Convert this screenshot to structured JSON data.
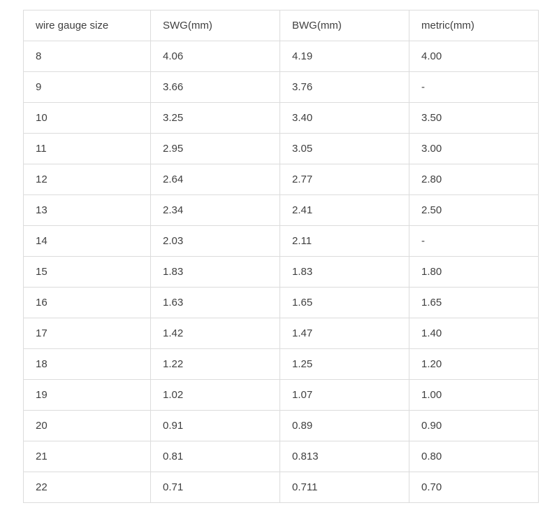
{
  "colors": {
    "background": "#ffffff",
    "border": "#dcdcdc",
    "text": "#404040"
  },
  "table": {
    "columns": [
      "wire gauge size",
      "SWG(mm)",
      "BWG(mm)",
      "metric(mm)"
    ],
    "rows": [
      [
        "8",
        "4.06",
        "4.19",
        "4.00"
      ],
      [
        "9",
        "3.66",
        "3.76",
        "-"
      ],
      [
        "10",
        "3.25",
        "3.40",
        "3.50"
      ],
      [
        "11",
        "2.95",
        "3.05",
        "3.00"
      ],
      [
        "12",
        "2.64",
        "2.77",
        "2.80"
      ],
      [
        "13",
        "2.34",
        "2.41",
        "2.50"
      ],
      [
        "14",
        "2.03",
        "2.11",
        "-"
      ],
      [
        "15",
        "1.83",
        "1.83",
        "1.80"
      ],
      [
        "16",
        "1.63",
        "1.65",
        "1.65"
      ],
      [
        "17",
        "1.42",
        "1.47",
        "1.40"
      ],
      [
        "18",
        "1.22",
        "1.25",
        "1.20"
      ],
      [
        "19",
        "1.02",
        "1.07",
        "1.00"
      ],
      [
        "20",
        "0.91",
        "0.89",
        "0.90"
      ],
      [
        "21",
        "0.81",
        "0.813",
        "0.80"
      ],
      [
        "22",
        "0.71",
        "0.711",
        "0.70"
      ]
    ]
  },
  "chart_data": {
    "type": "table",
    "title": "",
    "columns": [
      "wire gauge size",
      "SWG(mm)",
      "BWG(mm)",
      "metric(mm)"
    ],
    "rows": [
      [
        "8",
        "4.06",
        "4.19",
        "4.00"
      ],
      [
        "9",
        "3.66",
        "3.76",
        "-"
      ],
      [
        "10",
        "3.25",
        "3.40",
        "3.50"
      ],
      [
        "11",
        "2.95",
        "3.05",
        "3.00"
      ],
      [
        "12",
        "2.64",
        "2.77",
        "2.80"
      ],
      [
        "13",
        "2.34",
        "2.41",
        "2.50"
      ],
      [
        "14",
        "2.03",
        "2.11",
        "-"
      ],
      [
        "15",
        "1.83",
        "1.83",
        "1.80"
      ],
      [
        "16",
        "1.63",
        "1.65",
        "1.65"
      ],
      [
        "17",
        "1.42",
        "1.47",
        "1.40"
      ],
      [
        "18",
        "1.22",
        "1.25",
        "1.20"
      ],
      [
        "19",
        "1.02",
        "1.07",
        "1.00"
      ],
      [
        "20",
        "0.91",
        "0.89",
        "0.90"
      ],
      [
        "21",
        "0.81",
        "0.813",
        "0.80"
      ],
      [
        "22",
        "0.71",
        "0.711",
        "0.70"
      ]
    ]
  }
}
